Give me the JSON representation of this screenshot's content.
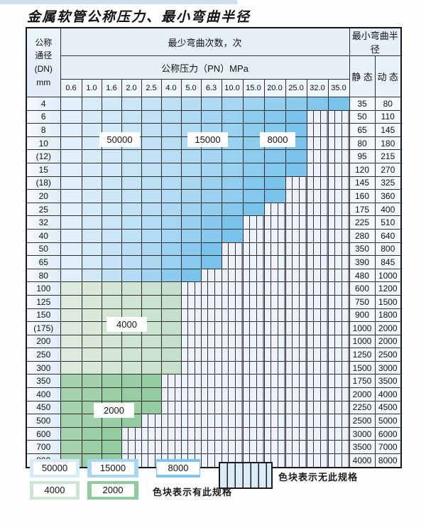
{
  "title": "金属软管公称压力、最小弯曲半径",
  "table": {
    "corner_header_lines": [
      "公称",
      "通径",
      "(DN)",
      "mm"
    ],
    "bend_cycles_header": "最少弯曲次数，次",
    "pressure_header": "公称压力（PN）MPa",
    "radius_header": "最小弯曲半径",
    "static_header": "静 态",
    "dynamic_header": "动 态",
    "pressure_columns": [
      "0.6",
      "1.0",
      "1.6",
      "2.0",
      "2.5",
      "4.0",
      "5.0",
      "6.3",
      "10.0",
      "15.0",
      "20.0",
      "25.0",
      "32.0",
      "35.0"
    ],
    "rows": [
      {
        "dn": "4",
        "colored_cols": 14,
        "zone": "blue",
        "static": "35",
        "dynamic": "80"
      },
      {
        "dn": "6",
        "colored_cols": 12,
        "zone": "blue",
        "static": "50",
        "dynamic": "110"
      },
      {
        "dn": "8",
        "colored_cols": 12,
        "zone": "blue",
        "static": "65",
        "dynamic": "145"
      },
      {
        "dn": "10",
        "colored_cols": 12,
        "zone": "blue",
        "static": "80",
        "dynamic": "180"
      },
      {
        "dn": "(12)",
        "colored_cols": 12,
        "zone": "blue",
        "static": "95",
        "dynamic": "215"
      },
      {
        "dn": "15",
        "colored_cols": 12,
        "zone": "blue",
        "static": "120",
        "dynamic": "270"
      },
      {
        "dn": "(18)",
        "colored_cols": 11,
        "zone": "blue",
        "static": "145",
        "dynamic": "325"
      },
      {
        "dn": "20",
        "colored_cols": 11,
        "zone": "blue",
        "static": "160",
        "dynamic": "360"
      },
      {
        "dn": "25",
        "colored_cols": 10,
        "zone": "blue",
        "static": "175",
        "dynamic": "400"
      },
      {
        "dn": "32",
        "colored_cols": 9,
        "zone": "blue",
        "static": "225",
        "dynamic": "510"
      },
      {
        "dn": "40",
        "colored_cols": 9,
        "zone": "blue",
        "static": "280",
        "dynamic": "640"
      },
      {
        "dn": "50",
        "colored_cols": 8,
        "zone": "blue",
        "static": "350",
        "dynamic": "800"
      },
      {
        "dn": "65",
        "colored_cols": 8,
        "zone": "blue",
        "static": "390",
        "dynamic": "845"
      },
      {
        "dn": "80",
        "colored_cols": 7,
        "zone": "blue",
        "static": "480",
        "dynamic": "1000"
      },
      {
        "dn": "100",
        "colored_cols": 6,
        "zone": "green-light",
        "static": "600",
        "dynamic": "1200"
      },
      {
        "dn": "125",
        "colored_cols": 6,
        "zone": "green-light",
        "static": "750",
        "dynamic": "1500"
      },
      {
        "dn": "150",
        "colored_cols": 6,
        "zone": "green-light",
        "static": "900",
        "dynamic": "1800"
      },
      {
        "dn": "(175)",
        "colored_cols": 6,
        "zone": "green-light",
        "static": "1000",
        "dynamic": "2000"
      },
      {
        "dn": "200",
        "colored_cols": 6,
        "zone": "green-light",
        "static": "1000",
        "dynamic": "2000"
      },
      {
        "dn": "250",
        "colored_cols": 6,
        "zone": "green-light",
        "static": "1250",
        "dynamic": "2500"
      },
      {
        "dn": "300",
        "colored_cols": 6,
        "zone": "green-light",
        "static": "1500",
        "dynamic": "3000"
      },
      {
        "dn": "350",
        "colored_cols": 5,
        "zone": "green-dark",
        "static": "1750",
        "dynamic": "3500"
      },
      {
        "dn": "400",
        "colored_cols": 5,
        "zone": "green-dark",
        "static": "2000",
        "dynamic": "4000"
      },
      {
        "dn": "450",
        "colored_cols": 5,
        "zone": "green-dark",
        "static": "2250",
        "dynamic": "4500"
      },
      {
        "dn": "500",
        "colored_cols": 4,
        "zone": "green-dark",
        "static": "2500",
        "dynamic": "5000"
      },
      {
        "dn": "600",
        "colored_cols": 3,
        "zone": "green-dark",
        "static": "3000",
        "dynamic": "6000"
      },
      {
        "dn": "700",
        "colored_cols": 3,
        "zone": "green-dark",
        "static": "3500",
        "dynamic": "7000"
      },
      {
        "dn": "800",
        "colored_cols": 3,
        "zone": "green-dark",
        "static": "4000",
        "dynamic": "8000"
      }
    ]
  },
  "overlay_labels": [
    {
      "text": "50000"
    },
    {
      "text": "15000"
    },
    {
      "text": "8000"
    },
    {
      "text": "4000"
    },
    {
      "text": "2000"
    }
  ],
  "legend": {
    "chips": [
      {
        "label": "50000",
        "color": "#d6eaf8"
      },
      {
        "label": "15000",
        "color": "#a9d6f1"
      },
      {
        "label": "8000",
        "color": "#7fc4ec"
      },
      {
        "label": "4000",
        "color": "#cfe5d4"
      },
      {
        "label": "2000",
        "color": "#92cb9f"
      }
    ],
    "has_spec_text": "色块表示有此规格",
    "no_spec_text": "色块表示无此规格"
  },
  "colors": {
    "blue_zone_stops": [
      "#e0eff9",
      "#b4dcf4",
      "#79c3eb"
    ],
    "green_light_zone_stops": [
      "#dcebdd",
      "#c7e0cc"
    ],
    "green_dark_zone_stops": [
      "#a5d3ad",
      "#95cba0"
    ],
    "hatch_base": "#ebf2fa",
    "hatch_line": "#333333",
    "top_band": "#cfe2f1",
    "grid_line": "#2e2e2e"
  }
}
